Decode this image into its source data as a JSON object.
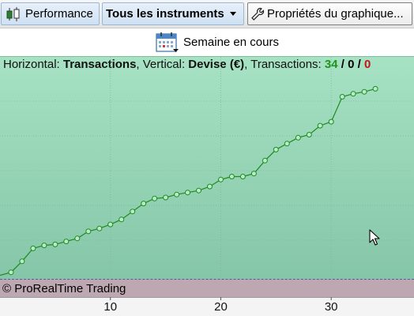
{
  "toolbar": {
    "performance_label": "Performance",
    "instruments_label": "Tous les instruments",
    "properties_label": "Propriétés du graphique..."
  },
  "period": {
    "label": "Semaine en cours"
  },
  "info": {
    "horizontal_prefix": "Horizontal: ",
    "horizontal_value": "Transactions",
    "vertical_prefix": ", Vertical: ",
    "vertical_value": "Devise (€)",
    "transactions_prefix": ", Transactions: ",
    "count_green": "34",
    "sep1": " / ",
    "count_black": "0",
    "sep2": " / ",
    "count_red": "0"
  },
  "footer": {
    "copyright": "© ProRealTime Trading"
  },
  "colors": {
    "line": "#1f8a1f",
    "marker_fill": "#b8ecc8",
    "plot_top": "#a6e2c3",
    "plot_bottom": "#86c6a8",
    "footer_bg": "#bda7b1",
    "win_count": "#21941f",
    "loss_count": "#c01616"
  },
  "icons": {
    "performance": "candlestick-icon",
    "properties": "wrench-icon",
    "period": "calendar-icon",
    "pointer": "mouse-cursor-icon"
  },
  "chart_data": {
    "type": "line",
    "xlabel": "",
    "ylabel": "",
    "x_ticks": [
      10,
      20,
      30
    ],
    "xlim": [
      0,
      37.5
    ],
    "ylim": [
      0,
      100
    ],
    "y_ticks_visible": false,
    "grid": true,
    "series": [
      {
        "x": [
          1,
          2,
          3,
          4,
          5,
          6,
          7,
          8,
          9,
          10,
          11,
          12,
          13,
          14,
          15,
          16,
          17,
          18,
          19,
          20,
          21,
          22,
          23,
          24,
          25,
          26,
          27,
          28,
          29,
          30,
          31,
          32,
          33,
          34
        ],
        "values": [
          1.5,
          7,
          13.5,
          15,
          15.5,
          17,
          18.5,
          22,
          23.5,
          25.5,
          28,
          32,
          36,
          38.5,
          39,
          40.5,
          41.5,
          42.5,
          44.5,
          48,
          49.5,
          49.5,
          51,
          57.5,
          63,
          66,
          69,
          70.5,
          75,
          77,
          89.5,
          91,
          92,
          93.5
        ]
      }
    ]
  }
}
